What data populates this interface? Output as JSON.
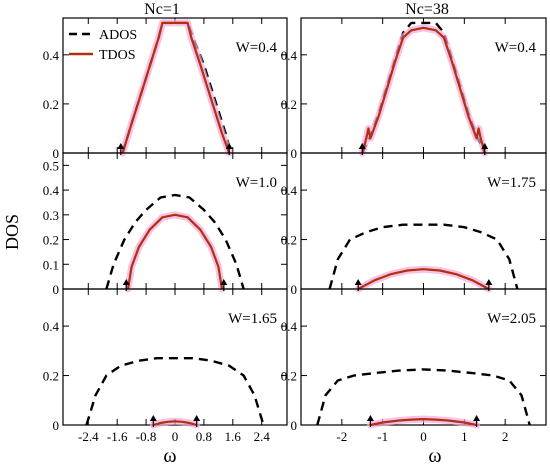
{
  "figure": {
    "ylabel": "DOS",
    "xlabel": "ω",
    "col_titles": [
      "Nc=1",
      "Nc=38"
    ],
    "legend": [
      "ADOS",
      "TDOS"
    ]
  },
  "colors": {
    "ados": "#000000",
    "tdos": "#b03010",
    "tdos_glow": "#f4a8dc",
    "axes": "#000000"
  },
  "chart_data": [
    {
      "type": "line",
      "column": "Nc=1",
      "annotation": "W=0.4",
      "xlim": [
        -3.1,
        3.1
      ],
      "ylim": [
        0,
        0.55
      ],
      "yticks": [
        0,
        0.2,
        0.4
      ],
      "ytick_labels": [
        "0",
        "0.2",
        "0.4"
      ],
      "xticks": [
        -2.4,
        -1.6,
        -0.8,
        0,
        0.8,
        1.6,
        2.4
      ],
      "xtick_labels": [],
      "arrows_x": [
        -1.5,
        1.5
      ],
      "series": [
        {
          "name": "ADOS",
          "style": "dashed",
          "x": [
            -1.45,
            -1.2,
            -0.9,
            -0.6,
            -0.45,
            -0.35,
            0.0,
            0.35,
            0.5,
            0.8,
            1.1,
            1.4,
            1.55
          ],
          "y": [
            0.0,
            0.12,
            0.26,
            0.4,
            0.47,
            0.53,
            0.53,
            0.53,
            0.47,
            0.36,
            0.22,
            0.08,
            0.0
          ]
        },
        {
          "name": "TDOS",
          "style": "solid",
          "x": [
            -1.45,
            -1.2,
            -0.9,
            -0.6,
            -0.45,
            -0.35,
            0.0,
            0.35,
            0.45,
            0.7,
            1.0,
            1.3,
            1.5
          ],
          "y": [
            0.0,
            0.12,
            0.26,
            0.4,
            0.47,
            0.53,
            0.53,
            0.53,
            0.47,
            0.36,
            0.22,
            0.08,
            0.0
          ]
        }
      ]
    },
    {
      "type": "line",
      "column": "Nc=38",
      "annotation": "W=0.4",
      "xlim": [
        -3.0,
        3.0
      ],
      "ylim": [
        0,
        0.55
      ],
      "yticks": [
        0,
        0.2,
        0.4
      ],
      "ytick_labels": [
        "0",
        "0.2",
        "0.4"
      ],
      "xticks": [
        -2,
        -1,
        0,
        1,
        2
      ],
      "xtick_labels": [],
      "arrows_x": [
        -1.5,
        1.5
      ],
      "series": [
        {
          "name": "ADOS",
          "style": "dashed",
          "x": [
            -1.5,
            -1.3,
            -1.1,
            -0.9,
            -0.7,
            -0.5,
            -0.3,
            0.0,
            0.3,
            0.5,
            0.7,
            0.9,
            1.1,
            1.3,
            1.5
          ],
          "y": [
            0.0,
            0.07,
            0.16,
            0.27,
            0.38,
            0.49,
            0.53,
            0.53,
            0.53,
            0.49,
            0.38,
            0.27,
            0.16,
            0.07,
            0.0
          ]
        },
        {
          "name": "TDOS",
          "style": "solid",
          "x": [
            -1.5,
            -1.4,
            -1.35,
            -1.3,
            -1.1,
            -0.9,
            -0.7,
            -0.5,
            -0.3,
            0.0,
            0.3,
            0.5,
            0.7,
            0.9,
            1.1,
            1.3,
            1.35,
            1.4,
            1.5
          ],
          "y": [
            0.0,
            0.06,
            0.1,
            0.06,
            0.15,
            0.26,
            0.37,
            0.47,
            0.5,
            0.51,
            0.5,
            0.47,
            0.37,
            0.26,
            0.15,
            0.06,
            0.1,
            0.06,
            0.0
          ]
        }
      ]
    },
    {
      "type": "line",
      "column": "Nc=1",
      "annotation": "W=1.0",
      "xlim": [
        -3.1,
        3.1
      ],
      "ylim": [
        0,
        0.55
      ],
      "yticks": [
        0,
        0.1,
        0.2,
        0.3,
        0.4,
        0.5
      ],
      "ytick_labels": [
        "0",
        "0.1",
        "0.2",
        "0.3",
        "0.4",
        "0.5"
      ],
      "xticks": [
        -2.4,
        -1.6,
        -0.8,
        0,
        0.8,
        1.6,
        2.4
      ],
      "xtick_labels": [],
      "arrows_x": [
        -1.35,
        1.35
      ],
      "series": [
        {
          "name": "ADOS",
          "style": "dashed",
          "x": [
            -1.9,
            -1.7,
            -1.4,
            -1.1,
            -0.8,
            -0.4,
            0.0,
            0.4,
            0.8,
            1.1,
            1.4,
            1.7,
            1.9
          ],
          "y": [
            0.0,
            0.1,
            0.2,
            0.27,
            0.32,
            0.37,
            0.38,
            0.37,
            0.32,
            0.27,
            0.2,
            0.1,
            0.0
          ]
        },
        {
          "name": "TDOS",
          "style": "solid",
          "x": [
            -1.3,
            -1.2,
            -1.0,
            -0.7,
            -0.35,
            0.0,
            0.35,
            0.7,
            1.0,
            1.2,
            1.3
          ],
          "y": [
            0.0,
            0.09,
            0.17,
            0.24,
            0.29,
            0.3,
            0.29,
            0.24,
            0.17,
            0.09,
            0.0
          ]
        }
      ]
    },
    {
      "type": "line",
      "column": "Nc=38",
      "annotation": "W=1.75",
      "xlim": [
        -3.0,
        3.0
      ],
      "ylim": [
        0,
        0.55
      ],
      "yticks": [
        0,
        0.2,
        0.4
      ],
      "ytick_labels": [
        "0",
        "0.2",
        "0.4"
      ],
      "xticks": [
        -2,
        -1,
        0,
        1,
        2
      ],
      "xtick_labels": [],
      "arrows_x": [
        -1.6,
        1.6
      ],
      "series": [
        {
          "name": "ADOS",
          "style": "dashed",
          "x": [
            -2.3,
            -2.1,
            -1.8,
            -1.4,
            -1.0,
            -0.5,
            0.0,
            0.5,
            1.0,
            1.4,
            1.8,
            2.1,
            2.3
          ],
          "y": [
            0.0,
            0.12,
            0.2,
            0.23,
            0.25,
            0.26,
            0.26,
            0.26,
            0.25,
            0.23,
            0.2,
            0.12,
            0.0
          ]
        },
        {
          "name": "TDOS",
          "style": "solid",
          "x": [
            -1.6,
            -1.2,
            -0.8,
            -0.4,
            0.0,
            0.4,
            0.8,
            1.2,
            1.6
          ],
          "y": [
            0.0,
            0.035,
            0.06,
            0.075,
            0.08,
            0.075,
            0.06,
            0.035,
            0.0
          ]
        }
      ]
    },
    {
      "type": "line",
      "column": "Nc=1",
      "annotation": "W=1.65",
      "xlim": [
        -3.1,
        3.1
      ],
      "ylim": [
        0,
        0.55
      ],
      "yticks": [
        0,
        0.2,
        0.4
      ],
      "ytick_labels": [
        "0",
        "0.2",
        "0.4"
      ],
      "xticks": [
        -2.4,
        -1.6,
        -0.8,
        0,
        0.8,
        1.6,
        2.4
      ],
      "xtick_labels": [
        "-2.4",
        "-1.6",
        "-0.8",
        "0",
        "0.8",
        "1.6",
        "2.4"
      ],
      "arrows_x": [
        -0.6,
        0.6
      ],
      "series": [
        {
          "name": "ADOS",
          "style": "dashed",
          "x": [
            -2.45,
            -2.2,
            -1.9,
            -1.5,
            -1.0,
            -0.5,
            0.0,
            0.5,
            1.0,
            1.5,
            1.9,
            2.2,
            2.45
          ],
          "y": [
            0.0,
            0.12,
            0.2,
            0.24,
            0.26,
            0.27,
            0.27,
            0.27,
            0.26,
            0.24,
            0.2,
            0.12,
            0.0
          ]
        },
        {
          "name": "TDOS",
          "style": "solid",
          "x": [
            -0.6,
            -0.4,
            -0.2,
            0.0,
            0.2,
            0.4,
            0.6
          ],
          "y": [
            0.0,
            0.008,
            0.013,
            0.015,
            0.013,
            0.008,
            0.0
          ]
        }
      ]
    },
    {
      "type": "line",
      "column": "Nc=38",
      "annotation": "W=2.05",
      "xlim": [
        -3.0,
        3.0
      ],
      "ylim": [
        0,
        0.55
      ],
      "yticks": [
        0,
        0.2,
        0.4
      ],
      "ytick_labels": [
        "0",
        "0.2",
        "0.4"
      ],
      "xticks": [
        -2,
        -1,
        0,
        1,
        2
      ],
      "xtick_labels": [
        "-2",
        "-1",
        "0",
        "1",
        "2"
      ],
      "arrows_x": [
        -1.3,
        1.3
      ],
      "series": [
        {
          "name": "ADOS",
          "style": "dashed",
          "x": [
            -2.6,
            -2.4,
            -2.1,
            -1.7,
            -1.2,
            -0.6,
            0.0,
            0.6,
            1.2,
            1.7,
            2.1,
            2.4,
            2.6
          ],
          "y": [
            0.0,
            0.12,
            0.18,
            0.2,
            0.21,
            0.22,
            0.225,
            0.22,
            0.21,
            0.2,
            0.18,
            0.12,
            0.0
          ]
        },
        {
          "name": "TDOS",
          "style": "solid",
          "x": [
            -1.3,
            -1.0,
            -0.6,
            -0.3,
            0.0,
            0.3,
            0.6,
            1.0,
            1.3
          ],
          "y": [
            0.0,
            0.01,
            0.018,
            0.022,
            0.024,
            0.022,
            0.018,
            0.01,
            0.0
          ]
        }
      ]
    }
  ]
}
